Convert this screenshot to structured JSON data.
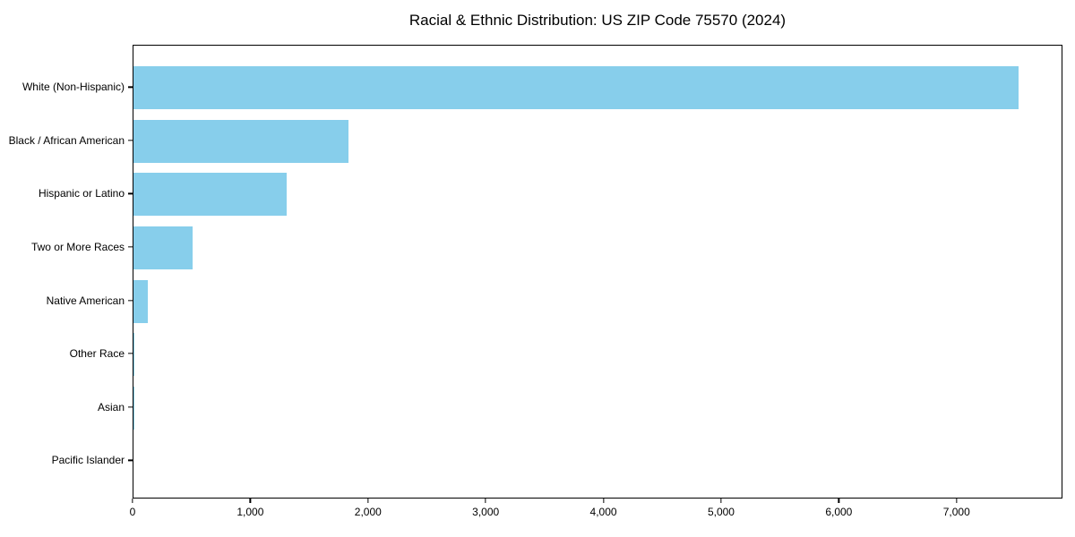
{
  "chart_data": {
    "type": "bar",
    "orientation": "horizontal",
    "title": "Racial & Ethnic Distribution: US ZIP Code 75570 (2024)",
    "categories": [
      "White (Non-Hispanic)",
      "Black / African American",
      "Hispanic or Latino",
      "Two or More Races",
      "Native American",
      "Other Race",
      "Asian",
      "Pacific Islander"
    ],
    "values": [
      7520,
      1830,
      1300,
      500,
      120,
      10,
      6,
      0
    ],
    "xlabel": "",
    "ylabel": "",
    "xlim": [
      0,
      7900
    ],
    "xticks": [
      0,
      1000,
      2000,
      3000,
      4000,
      5000,
      6000,
      7000
    ],
    "xtick_labels": [
      "0",
      "1,000",
      "2,000",
      "3,000",
      "4,000",
      "5,000",
      "6,000",
      "7,000"
    ],
    "bar_color": "#87CEEB",
    "background_color": "#ffffff",
    "grid": false,
    "legend": null
  }
}
